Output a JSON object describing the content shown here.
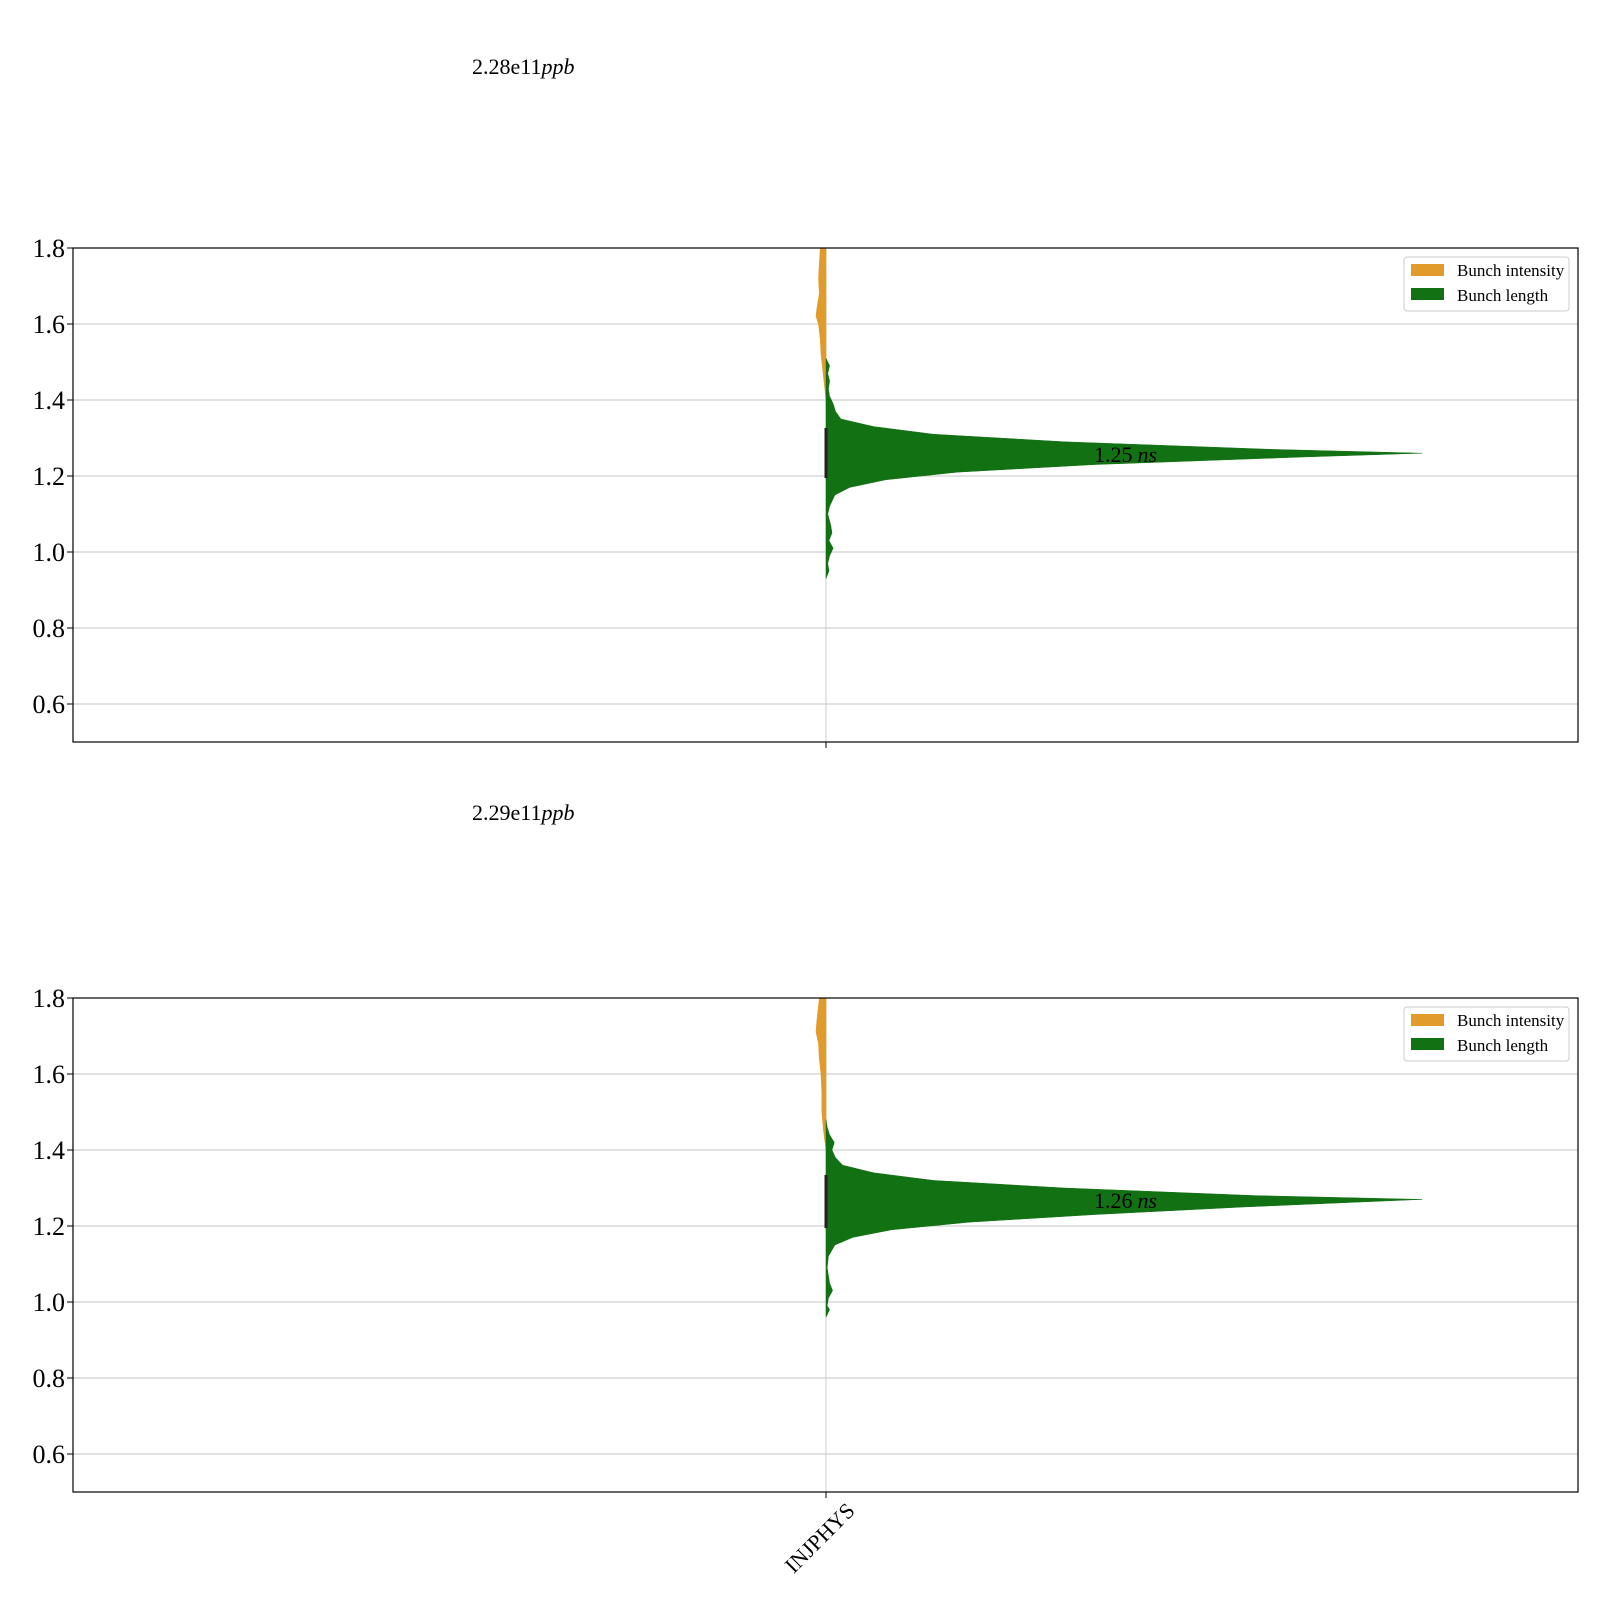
{
  "chart_data": [
    {
      "type": "violin",
      "annotation": {
        "value": "2.28e11",
        "unit": "ppb"
      },
      "ylim": [
        0.5,
        1.8
      ],
      "yticks": [
        0.6,
        0.8,
        1.0,
        1.2,
        1.4,
        1.6,
        1.8
      ],
      "grid": true,
      "legend": {
        "placement": "top-right",
        "entries": [
          "Bunch intensity",
          "Bunch length"
        ]
      },
      "categories": [],
      "series": [
        {
          "name": "Bunch intensity",
          "color": "#e09b2a",
          "side": "left",
          "range": [
            1.4,
            1.8
          ],
          "profile": [
            [
              1.4,
              0.0
            ],
            [
              1.46,
              0.15
            ],
            [
              1.52,
              0.3
            ],
            [
              1.56,
              0.35
            ],
            [
              1.6,
              0.45
            ],
            [
              1.62,
              0.6
            ],
            [
              1.64,
              0.55
            ],
            [
              1.68,
              0.4
            ],
            [
              1.72,
              0.45
            ],
            [
              1.76,
              0.4
            ],
            [
              1.8,
              0.35
            ]
          ]
        },
        {
          "name": "Bunch length",
          "color": "#127112",
          "side": "right",
          "median": 1.25,
          "label": {
            "value": "1.25",
            "unit": "ns"
          },
          "profile": [
            [
              0.93,
              0.0
            ],
            [
              0.95,
              0.5
            ],
            [
              0.97,
              0.3
            ],
            [
              0.99,
              0.6
            ],
            [
              1.01,
              1.2
            ],
            [
              1.03,
              0.5
            ],
            [
              1.05,
              1.0
            ],
            [
              1.07,
              0.8
            ],
            [
              1.1,
              0.3
            ],
            [
              1.12,
              0.6
            ],
            [
              1.15,
              1.5
            ],
            [
              1.17,
              4.0
            ],
            [
              1.19,
              10.0
            ],
            [
              1.21,
              22.0
            ],
            [
              1.23,
              45.0
            ],
            [
              1.25,
              80.0
            ],
            [
              1.26,
              100.0
            ],
            [
              1.27,
              75.0
            ],
            [
              1.29,
              40.0
            ],
            [
              1.31,
              18.0
            ],
            [
              1.33,
              8.0
            ],
            [
              1.35,
              2.5
            ],
            [
              1.37,
              1.6
            ],
            [
              1.39,
              1.2
            ],
            [
              1.41,
              0.6
            ],
            [
              1.43,
              0.4
            ],
            [
              1.45,
              0.6
            ],
            [
              1.47,
              0.3
            ],
            [
              1.49,
              0.6
            ],
            [
              1.51,
              0.0
            ]
          ]
        }
      ]
    },
    {
      "type": "violin",
      "annotation": {
        "value": "2.29e11",
        "unit": "ppb"
      },
      "ylim": [
        0.5,
        1.8
      ],
      "yticks": [
        0.6,
        0.8,
        1.0,
        1.2,
        1.4,
        1.6,
        1.8
      ],
      "grid": true,
      "legend": {
        "placement": "top-right",
        "entries": [
          "Bunch intensity",
          "Bunch length"
        ]
      },
      "categories": [
        "INJPHYS"
      ],
      "series": [
        {
          "name": "Bunch intensity",
          "color": "#e09b2a",
          "side": "left",
          "range": [
            1.4,
            1.8
          ],
          "profile": [
            [
              1.4,
              0.0
            ],
            [
              1.45,
              0.15
            ],
            [
              1.5,
              0.25
            ],
            [
              1.55,
              0.25
            ],
            [
              1.6,
              0.3
            ],
            [
              1.64,
              0.4
            ],
            [
              1.68,
              0.45
            ],
            [
              1.71,
              0.6
            ],
            [
              1.74,
              0.55
            ],
            [
              1.78,
              0.45
            ],
            [
              1.8,
              0.4
            ]
          ]
        },
        {
          "name": "Bunch length",
          "color": "#127112",
          "side": "right",
          "median": 1.26,
          "label": {
            "value": "1.26",
            "unit": "ns"
          },
          "profile": [
            [
              0.96,
              0.0
            ],
            [
              0.97,
              0.3
            ],
            [
              0.98,
              0.6
            ],
            [
              0.99,
              0.2
            ],
            [
              1.01,
              0.4
            ],
            [
              1.03,
              1.1
            ],
            [
              1.05,
              0.6
            ],
            [
              1.07,
              0.4
            ],
            [
              1.09,
              0.2
            ],
            [
              1.12,
              0.4
            ],
            [
              1.15,
              1.5
            ],
            [
              1.17,
              4.5
            ],
            [
              1.19,
              11.0
            ],
            [
              1.21,
              24.0
            ],
            [
              1.23,
              45.0
            ],
            [
              1.25,
              70.0
            ],
            [
              1.27,
              100.0
            ],
            [
              1.28,
              72.0
            ],
            [
              1.3,
              40.0
            ],
            [
              1.32,
              18.0
            ],
            [
              1.34,
              8.0
            ],
            [
              1.36,
              2.8
            ],
            [
              1.38,
              1.6
            ],
            [
              1.4,
              1.0
            ],
            [
              1.42,
              1.4
            ],
            [
              1.44,
              0.6
            ],
            [
              1.46,
              0.2
            ],
            [
              1.48,
              0.0
            ]
          ]
        }
      ]
    }
  ]
}
